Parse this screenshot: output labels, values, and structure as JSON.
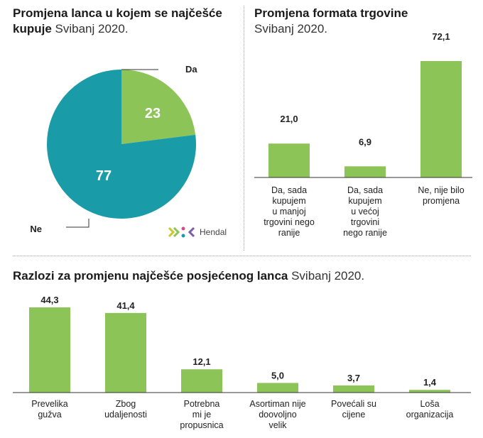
{
  "pie_panel": {
    "title_bold": "Promjena lanca u kojem se najčešće kupuje",
    "title_sub": "Svibanj 2020."
  },
  "bar_panel_top": {
    "title_bold": "Promjena formata trgovine",
    "title_sub": "Svibanj 2020."
  },
  "bar_panel_bottom": {
    "title_bold": "Razlozi za promjenu najčešće posjećenog lanca",
    "title_sub": "Svibanj 2020."
  },
  "logo": {
    "text": "Hendal",
    "icon": "hendal-logo-icon"
  },
  "colors": {
    "green": "#8dc457",
    "teal": "#1a9ba8",
    "axis": "#333333"
  },
  "chart_data": [
    {
      "type": "pie",
      "categories": [
        "Da",
        "Ne"
      ],
      "values": [
        23,
        77
      ],
      "value_labels": [
        "23",
        "77"
      ],
      "colors": [
        "#8dc457",
        "#1a9ba8"
      ]
    },
    {
      "type": "bar",
      "categories": [
        [
          "Da, sada",
          "kupujem",
          "u manjoj",
          "trgovini nego",
          "ranije"
        ],
        [
          "Da, sada",
          "kupujem",
          "u većoj",
          "trgovini",
          "nego ranije"
        ],
        [
          "Ne, nije bilo",
          "promjena"
        ]
      ],
      "values": [
        21.0,
        6.9,
        72.1
      ],
      "value_labels": [
        "21,0",
        "6,9",
        "72,1"
      ],
      "ylim": [
        0,
        72.1
      ],
      "grid": false
    },
    {
      "type": "bar",
      "categories": [
        [
          "Prevelika",
          "gužva"
        ],
        [
          "Zbog",
          "udaljenosti"
        ],
        [
          "Potrebna",
          "mi je",
          "propusnica"
        ],
        [
          "Asortiman nije",
          "doovoljno",
          "velik"
        ],
        [
          "Povećali su",
          "cijene"
        ],
        [
          "Loša",
          "organizacija"
        ]
      ],
      "values": [
        44.3,
        41.4,
        12.1,
        5.0,
        3.7,
        1.4
      ],
      "value_labels": [
        "44,3",
        "41,4",
        "12,1",
        "5,0",
        "3,7",
        "1,4"
      ],
      "ylim": [
        0,
        44.3
      ],
      "grid": false
    }
  ]
}
